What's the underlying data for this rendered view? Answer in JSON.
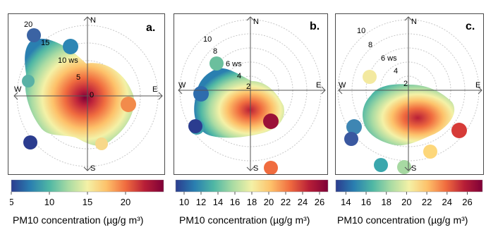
{
  "chart_data": [
    {
      "type": "polar_plot",
      "panel_label": "a.",
      "directions": [
        "N",
        "E",
        "S",
        "W"
      ],
      "radial_unit": "ws",
      "radial_ticks": [
        0,
        5,
        10,
        15,
        20
      ],
      "radial_labels": [
        "0",
        "5",
        "10 ws",
        "15",
        "20"
      ],
      "colorbar": {
        "title": "PM10 concentration (µg/g m³)",
        "range": [
          5,
          25
        ],
        "ticks": [
          5,
          10,
          15,
          20
        ],
        "colors": [
          "#2b3c8f",
          "#2a7fb0",
          "#4fb7a4",
          "#a9dba3",
          "#f4f1a6",
          "#fdc16a",
          "#f06c3f",
          "#b81f37",
          "#7e0037"
        ]
      }
    },
    {
      "type": "polar_plot",
      "panel_label": "b.",
      "directions": [
        "N",
        "E",
        "S",
        "W"
      ],
      "radial_unit": "ws",
      "radial_ticks": [
        2,
        4,
        6,
        8,
        10
      ],
      "radial_labels": [
        "2",
        "4",
        "6 ws",
        "8",
        "10"
      ],
      "colorbar": {
        "title": "PM10 concentration (µg/g m³)",
        "range": [
          9,
          27
        ],
        "ticks": [
          10,
          12,
          14,
          16,
          18,
          20,
          22,
          24,
          26
        ],
        "colors": [
          "#2b3c8f",
          "#2a7fb0",
          "#4fb7a4",
          "#a9dba3",
          "#f4f1a6",
          "#fdc16a",
          "#f06c3f",
          "#b81f37",
          "#7e0037"
        ]
      }
    },
    {
      "type": "polar_plot",
      "panel_label": "c.",
      "directions": [
        "N",
        "E",
        "S",
        "W"
      ],
      "radial_unit": "ws",
      "radial_ticks": [
        2,
        4,
        6,
        8,
        10
      ],
      "radial_labels": [
        "2",
        "4",
        "6 ws",
        "8",
        "10"
      ],
      "colorbar": {
        "title": "PM10 concentration (µg/g m³)",
        "range": [
          13,
          27.5
        ],
        "ticks": [
          14,
          16,
          18,
          20,
          22,
          24,
          26
        ],
        "colors": [
          "#2b3c8f",
          "#2a7fb0",
          "#4fb7a4",
          "#a9dba3",
          "#f4f1a6",
          "#fdc16a",
          "#f06c3f",
          "#b81f37",
          "#7e0037"
        ]
      }
    }
  ]
}
